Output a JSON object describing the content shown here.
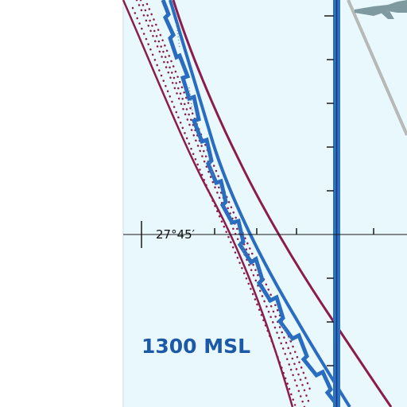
{
  "map": {
    "latitude_label": "27°45′",
    "altitude_label": "1300 MSL"
  },
  "colors": {
    "water": "#e8f8fd",
    "margin": "#ffffff",
    "maroon": "#8b1c4c",
    "class_b_blue": "#2a6cbf",
    "runway_blue": "#2f6fc0",
    "airport_gray": "#9aa0a6",
    "aircraft_gray": "#7e9aa0",
    "tick": "#1a1a1a",
    "label_blue": "#1c5aa8"
  }
}
